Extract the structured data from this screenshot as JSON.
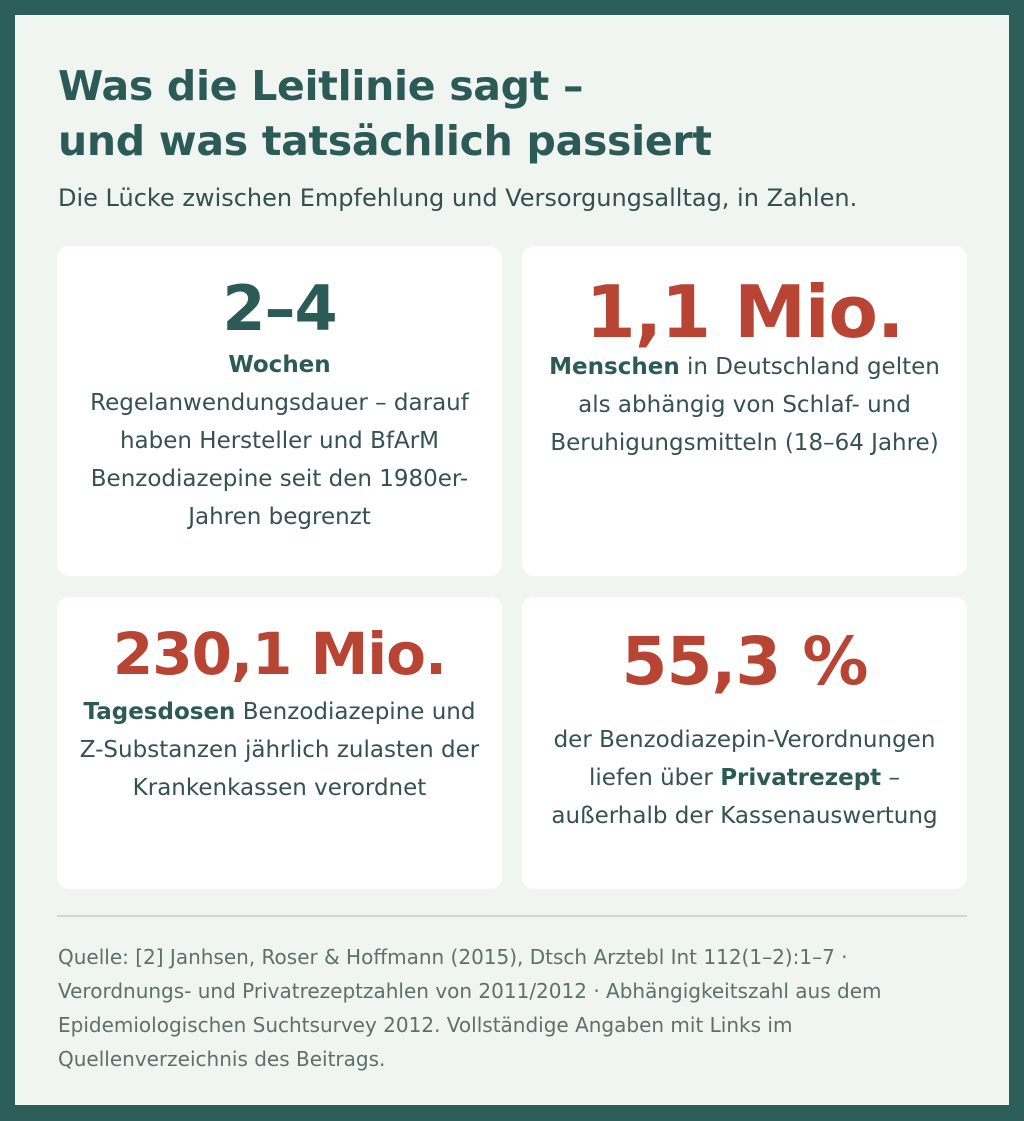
{
  "header": {
    "title_line1": "Was die Leitlinie sagt –",
    "title_line2": "und was tatsächlich passiert",
    "subtitle": "Die Lücke zwischen Empfehlung und Versorgungsalltag, in Zahlen."
  },
  "cards": [
    {
      "value": "2–4",
      "unit": "Wochen",
      "text": "Regelanwendungsdauer – darauf haben Hersteller und BfArM Benzodiazepine seit den 1980er-Jahren begrenzt"
    },
    {
      "value": "1,1 Mio.",
      "bold_prefix": "Menschen",
      "text": " in Deutschland gelten als abhängig von Schlaf- und Beruhigungsmitteln (18–64 Jahre)"
    },
    {
      "value": "230,1 Mio.",
      "bold_prefix": "Tagesdosen",
      "text": " Benzodiazepine und Z-Substanzen jährlich zulasten der Krankenkassen verordnet"
    },
    {
      "value": "55,3 %",
      "text_before": "der Benzodiazepin-Verordnungen liefen über ",
      "bold_mid": "Privatrezept",
      "text_after": " – außerhalb der Kassenauswertung"
    }
  ],
  "source": "Quelle: [2] Janhsen, Roser & Hoffmann (2015), Dtsch Arztebl Int 112(1–2):1–7 · Verordnungs- und Privatrezeptzahlen von 2011/2012 · Abhängigkeitszahl aus dem Epidemiologischen Suchtsurvey 2012. Vollständige Angaben mit Links im Quellenverzeichnis des Beitrags.",
  "colors": {
    "frame": "#2e5e5a",
    "background": "#f0f5f1",
    "teal": "#2c5a56",
    "red": "#b84434"
  }
}
